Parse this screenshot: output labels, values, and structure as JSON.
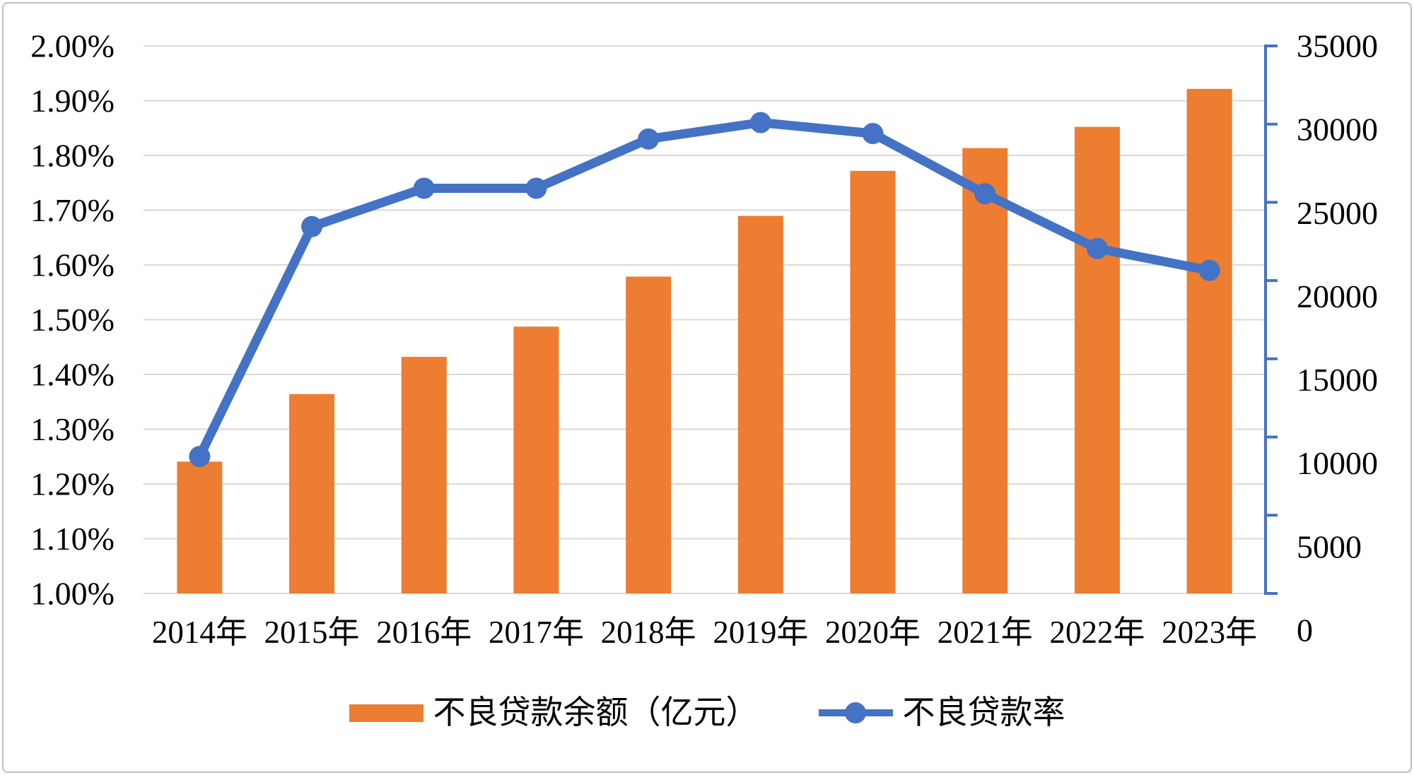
{
  "chart_data": {
    "type": "bar",
    "subtype": "combo-bar-line-dual-axis",
    "title": "",
    "categories": [
      "2014年",
      "2015年",
      "2016年",
      "2017年",
      "2018年",
      "2019年",
      "2020年",
      "2021年",
      "2022年",
      "2023年"
    ],
    "series": [
      {
        "name": "不良贷款余额（亿元）",
        "type": "bar",
        "axis": "right",
        "values": [
          8426,
          12744,
          15123,
          17057,
          20254,
          24135,
          27015,
          28470,
          29825,
          32256
        ]
      },
      {
        "name": "不良贷款率",
        "type": "line",
        "axis": "left",
        "unit": "%",
        "values": [
          1.25,
          1.67,
          1.74,
          1.74,
          1.83,
          1.86,
          1.84,
          1.73,
          1.63,
          1.59
        ]
      }
    ],
    "left_axis": {
      "min": 1.0,
      "max": 2.0,
      "tick_labels": [
        "2.00%",
        "1.90%",
        "1.80%",
        "1.70%",
        "1.60%",
        "1.50%",
        "1.40%",
        "1.30%",
        "1.20%",
        "1.10%",
        "1.00%"
      ]
    },
    "right_axis": {
      "min": 0,
      "max": 35000,
      "tick_labels": [
        "35000",
        "30000",
        "25000",
        "20000",
        "15000",
        "10000",
        "5000",
        "0"
      ]
    },
    "grid": true,
    "legend_position": "bottom"
  },
  "legend": {
    "bar_label": "不良贷款余额（亿元）",
    "line_label": "不良贷款率"
  },
  "colors": {
    "bar": "#ED7D31",
    "line": "#4472C4",
    "marker": "#4472C4",
    "right_axis": "#4472C4",
    "gridline": "#D9D9D9",
    "text": "#000000",
    "border": "#BFBFBF"
  }
}
